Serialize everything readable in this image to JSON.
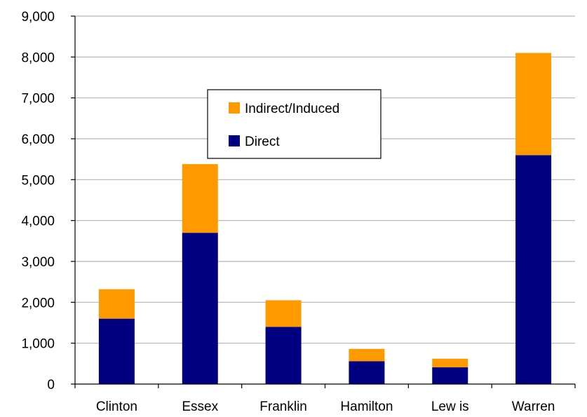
{
  "chart_data": {
    "type": "bar",
    "stacked": true,
    "categories": [
      "Clinton",
      "Essex",
      "Franklin",
      "Hamilton",
      "Lew is",
      "Warren"
    ],
    "series": [
      {
        "name": "Direct",
        "color": "#000080",
        "values": [
          1600,
          3700,
          1400,
          560,
          410,
          5600
        ]
      },
      {
        "name": "Indirect/Induced",
        "color": "#ff9900",
        "values": [
          720,
          1680,
          650,
          300,
          210,
          2500
        ]
      }
    ],
    "ylim": [
      0,
      9000
    ],
    "yticks": [
      0,
      1000,
      2000,
      3000,
      4000,
      5000,
      6000,
      7000,
      8000,
      9000
    ],
    "ytick_labels": [
      "0",
      "1,000",
      "2,000",
      "3,000",
      "4,000",
      "5,000",
      "6,000",
      "7,000",
      "8,000",
      "9,000"
    ],
    "grid": true,
    "legend": {
      "placement": "upper-center",
      "entries": [
        {
          "label": "Indirect/Induced",
          "color": "#ff9900"
        },
        {
          "label": "Direct",
          "color": "#000080"
        }
      ]
    }
  }
}
